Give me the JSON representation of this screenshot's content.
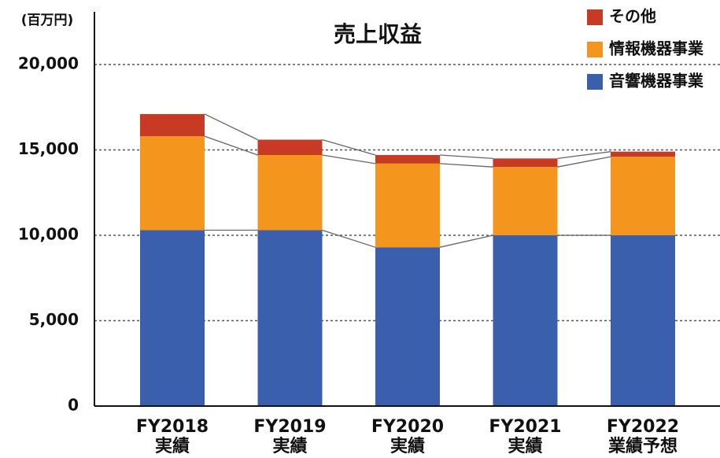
{
  "chart_data": {
    "type": "stacked_bar",
    "title": "売上収益",
    "y_label": "(百万円)",
    "categories": [
      [
        "FY2018",
        "実績"
      ],
      [
        "FY2019",
        "実績"
      ],
      [
        "FY2020",
        "実績"
      ],
      [
        "FY2021",
        "実績"
      ],
      [
        "FY2022",
        "業績予想"
      ]
    ],
    "series": [
      {
        "name": "音響機器事業",
        "color": "#3a5fad",
        "values": [
          10300,
          10300,
          9300,
          10000,
          10000
        ]
      },
      {
        "name": "情報機器事業",
        "color": "#f4961e",
        "values": [
          5500,
          4400,
          4900,
          4000,
          4600
        ]
      },
      {
        "name": "その他",
        "color": "#c73a23",
        "values": [
          1300,
          900,
          500,
          500,
          300
        ]
      }
    ],
    "ylim": [
      0,
      20000
    ],
    "yticks": [
      0,
      {
        "value": 5000,
        "label": "5,000"
      },
      {
        "value": 10000,
        "label": "10,000"
      },
      {
        "value": 15000,
        "label": "15,000"
      },
      {
        "value": 20000,
        "label": "20,000"
      }
    ],
    "grid": true,
    "legend": "top-right"
  }
}
